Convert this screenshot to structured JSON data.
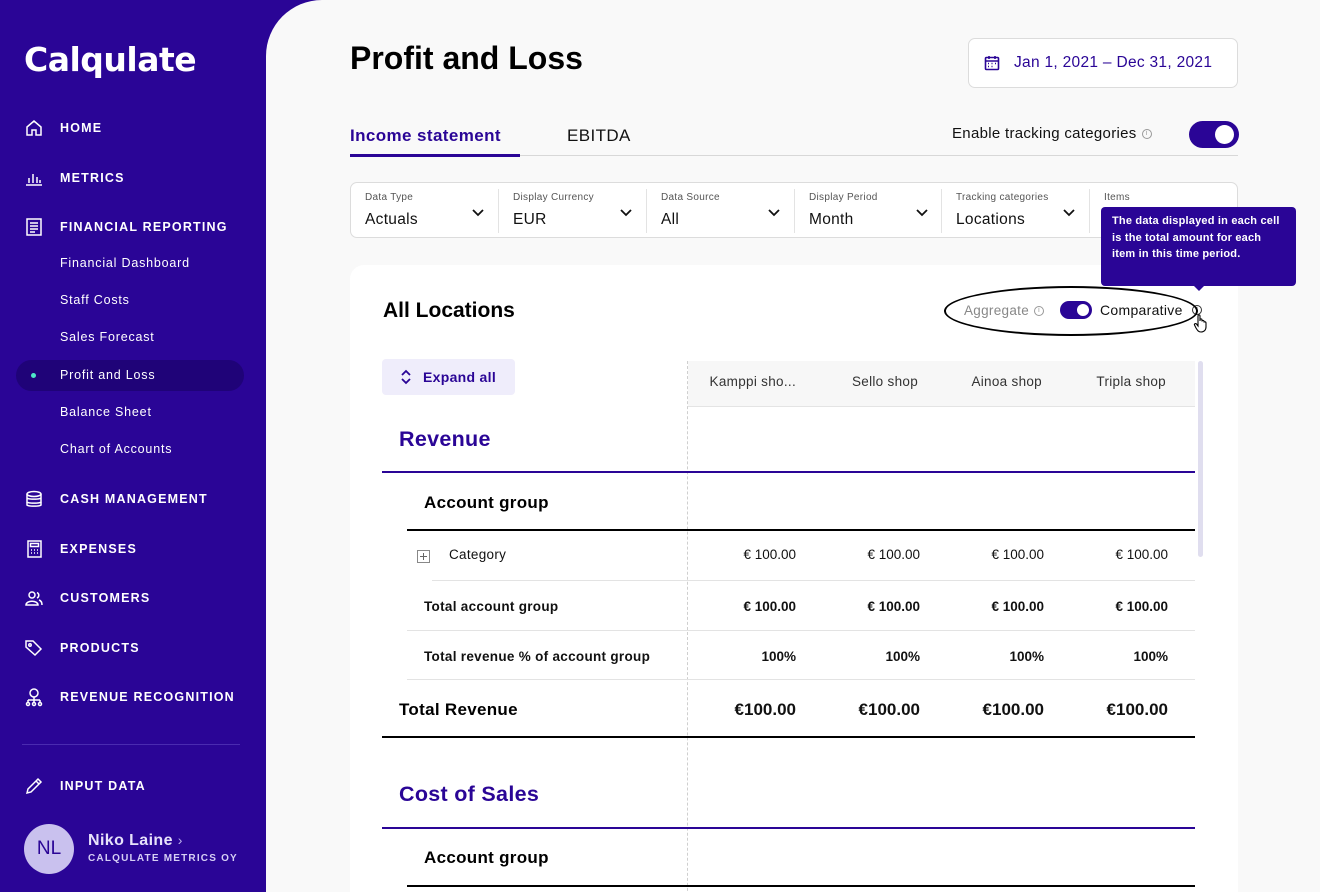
{
  "app": {
    "logo": "Calqulate"
  },
  "sidebar": {
    "nav": [
      {
        "label": "HOME",
        "icon": "home-icon"
      },
      {
        "label": "METRICS",
        "icon": "bar-chart-icon"
      },
      {
        "label": "FINANCIAL REPORTING",
        "icon": "receipt-icon"
      },
      {
        "label": "CASH MANAGEMENT",
        "icon": "coins-icon"
      },
      {
        "label": "EXPENSES",
        "icon": "calculator-icon"
      },
      {
        "label": "CUSTOMERS",
        "icon": "users-icon"
      },
      {
        "label": "PRODUCTS",
        "icon": "tags-icon"
      },
      {
        "label": "REVENUE RECOGNITION",
        "icon": "dollar-network-icon"
      },
      {
        "label": "INPUT DATA",
        "icon": "pencil-icon"
      }
    ],
    "sub_items": [
      "Financial Dashboard",
      "Staff Costs",
      "Sales Forecast",
      "Profit and Loss",
      "Balance Sheet",
      "Chart of Accounts"
    ],
    "active_sub": "Profit and Loss",
    "user": {
      "initials": "NL",
      "name": "Niko Laine",
      "org": "CALQULATE METRICS OY"
    }
  },
  "header": {
    "title": "Profit and Loss",
    "date_range": "Jan 1, 2021 – Dec 31, 2021"
  },
  "tabs": [
    {
      "label": "Income statement",
      "active": true
    },
    {
      "label": "EBITDA",
      "active": false
    }
  ],
  "tracking": {
    "label": "Enable tracking categories",
    "enabled": true
  },
  "filters": [
    {
      "label": "Data Type",
      "value": "Actuals"
    },
    {
      "label": "Display Currency",
      "value": "EUR"
    },
    {
      "label": "Data Source",
      "value": "All"
    },
    {
      "label": "Display Period",
      "value": "Month"
    },
    {
      "label": "Tracking categories",
      "value": "Locations"
    },
    {
      "label": "Items",
      "value": ""
    }
  ],
  "tooltip": {
    "text": "The data displayed in each cell is the total amount for each item in this time period."
  },
  "card": {
    "title": "All Locations",
    "aggregate_label": "Aggregate",
    "comparative_label": "Comparative",
    "comparative_on": true,
    "expand_label": "Expand all",
    "columns": [
      "Kamppi sho...",
      "Sello shop",
      "Ainoa shop",
      "Tripla shop"
    ],
    "revenue": {
      "title": "Revenue",
      "group_title": "Account group",
      "category_label": "Category",
      "category_values": [
        "€ 100.00",
        "€ 100.00",
        "€ 100.00",
        "€ 100.00"
      ],
      "total_group_label": "Total account group",
      "total_group_values": [
        "€ 100.00",
        "€ 100.00",
        "€ 100.00",
        "€ 100.00"
      ],
      "pct_label": "Total revenue % of account group",
      "pct_values": [
        "100%",
        "100%",
        "100%",
        "100%"
      ],
      "total_label": "Total Revenue",
      "total_values": [
        "€100.00",
        "€100.00",
        "€100.00",
        "€100.00"
      ]
    },
    "cost_of_sales": {
      "title": "Cost of Sales",
      "group_title": "Account group"
    }
  }
}
